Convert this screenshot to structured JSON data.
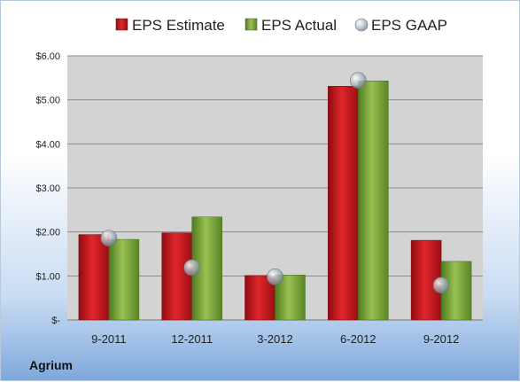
{
  "company": "Agrium",
  "colors": {
    "estimate": "#c0161c",
    "actual": "#7aa23a",
    "gaap": "#9aa8b8",
    "plot_bg": "#d3d3d3"
  },
  "chart_data": {
    "type": "bar",
    "categories": [
      "9-2011",
      "12-2011",
      "3-2012",
      "6-2012",
      "9-2012"
    ],
    "series": [
      {
        "name": "EPS Estimate",
        "type": "bar",
        "values": [
          1.94,
          1.98,
          1.01,
          5.31,
          1.81
        ]
      },
      {
        "name": "EPS Actual",
        "type": "bar",
        "values": [
          1.83,
          2.34,
          1.02,
          5.43,
          1.33
        ]
      },
      {
        "name": "EPS GAAP",
        "type": "marker",
        "values": [
          1.86,
          1.19,
          0.98,
          5.44,
          0.79
        ]
      }
    ],
    "y_ticks": [
      0,
      1,
      2,
      3,
      4,
      5,
      6
    ],
    "y_tick_labels": [
      "$-",
      "$1.00",
      "$2.00",
      "$3.00",
      "$4.00",
      "$5.00",
      "$6.00"
    ],
    "ylim": [
      0,
      6
    ],
    "grid": true,
    "legend_position": "top"
  }
}
